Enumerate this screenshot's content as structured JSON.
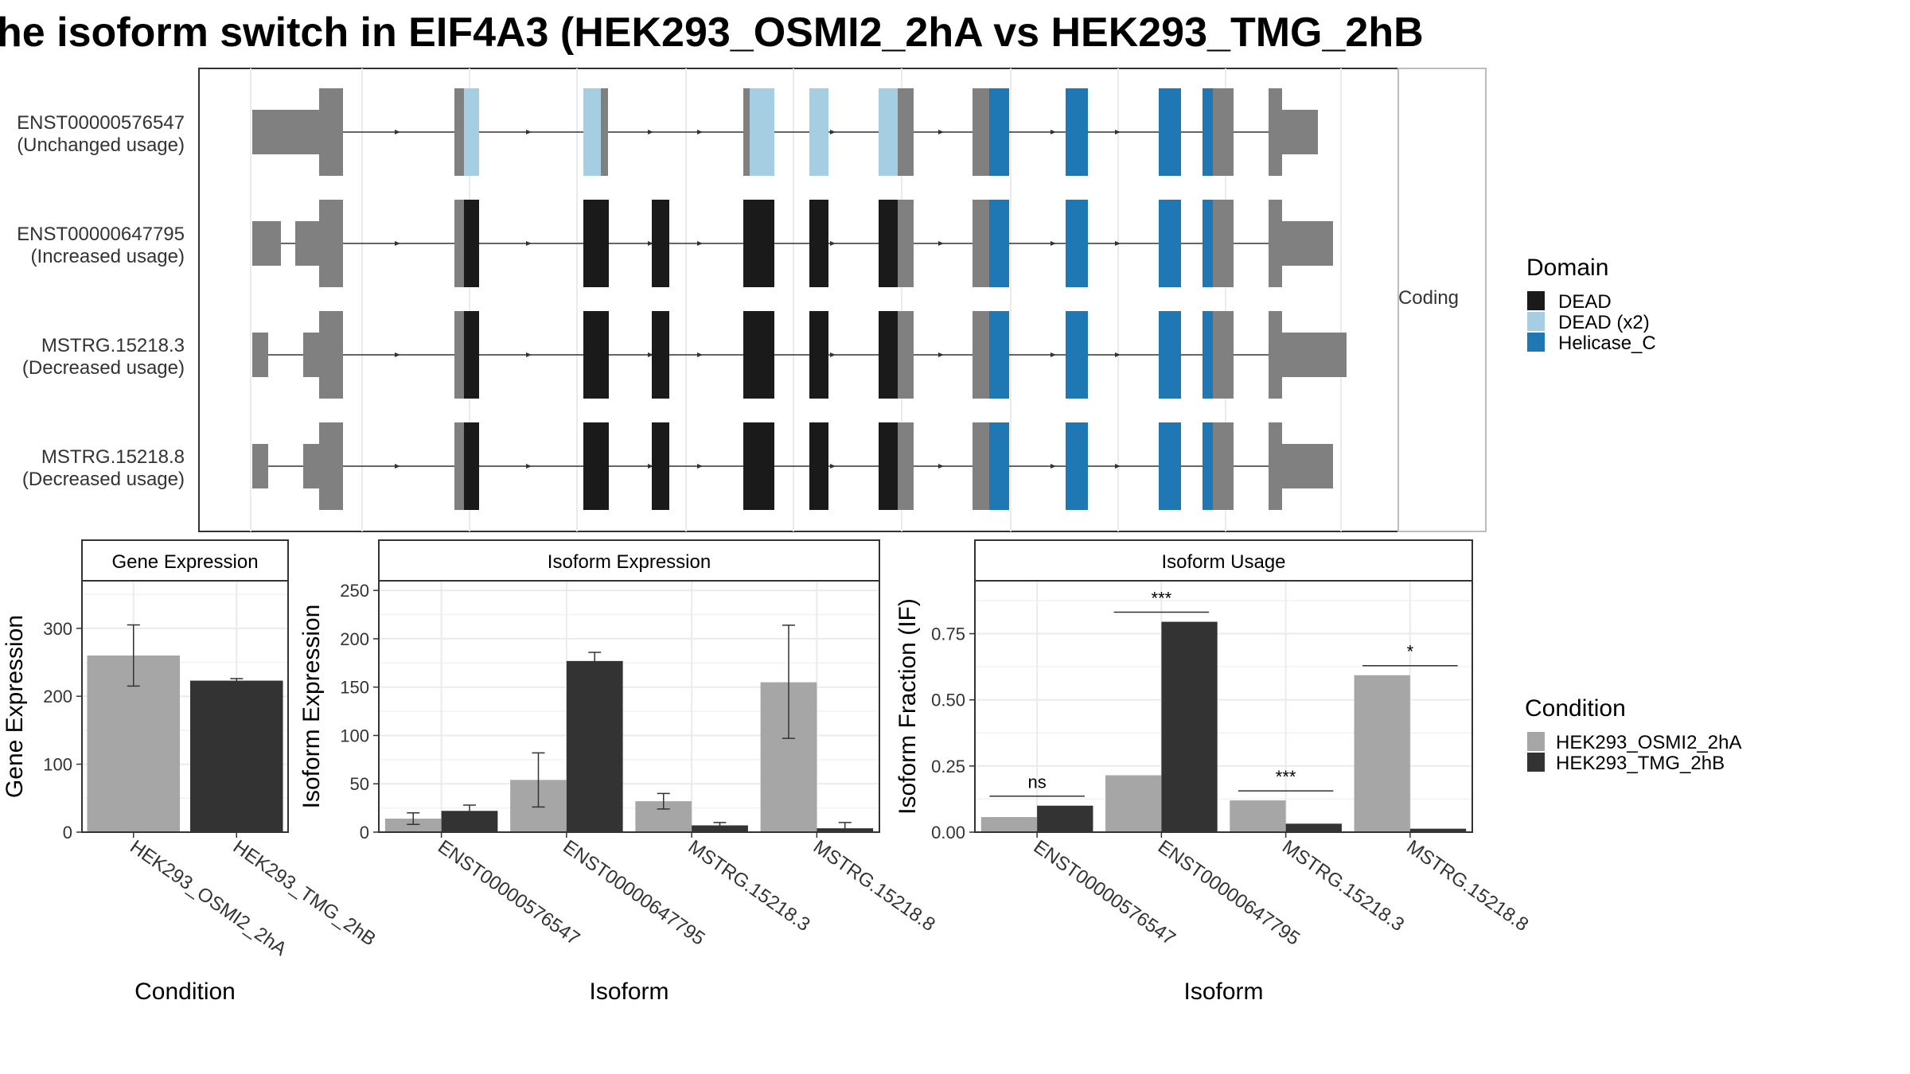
{
  "figure_title": "he isoform switch in EIF4A3 (HEK293_OSMI2_2hA vs HEK293_TMG_2hB",
  "colors": {
    "utr": "#808080",
    "dead": "#1a1a1a",
    "dead_x2": "#a6cee3",
    "helicase_c": "#1f78b4",
    "cond1": "#a6a6a6",
    "cond2": "#333333",
    "grid": "#ebebeb",
    "panel_border": "#333333"
  },
  "structure": {
    "facet_label": "Coding",
    "legend": {
      "title": "Domain",
      "items": [
        {
          "label": "DEAD",
          "color": "#1a1a1a"
        },
        {
          "label": "DEAD (x2)",
          "color": "#a6cee3"
        },
        {
          "label": "Helicase_C",
          "color": "#1f78b4"
        }
      ]
    },
    "transcripts": [
      {
        "id": "ENST00000576547",
        "usage": "(Unchanged usage)",
        "scheme": "x2"
      },
      {
        "id": "ENST00000647795",
        "usage": "(Increased usage)",
        "scheme": "dead"
      },
      {
        "id": "MSTRG.15218.3",
        "usage": "(Decreased usage)",
        "scheme": "dead"
      },
      {
        "id": "MSTRG.15218.8",
        "usage": "(Decreased usage)",
        "scheme": "dead"
      }
    ]
  },
  "condition_legend": {
    "title": "Condition",
    "items": [
      {
        "label": "HEK293_OSMI2_2hA",
        "color": "#a6a6a6"
      },
      {
        "label": "HEK293_TMG_2hB",
        "color": "#333333"
      }
    ]
  },
  "chart_data": [
    {
      "type": "bar",
      "title": "Gene Expression",
      "xlabel": "Condition",
      "ylabel": "Gene Expression",
      "ylim": [
        0,
        370
      ],
      "yticks": [
        0,
        100,
        200,
        300
      ],
      "categories": [
        "HEK293_OSMI2_2hA",
        "HEK293_TMG_2hB"
      ],
      "values": [
        260,
        223
      ],
      "error_low": [
        215,
        220
      ],
      "error_high": [
        305,
        226
      ]
    },
    {
      "type": "bar",
      "title": "Isoform Expression",
      "xlabel": "Isoform",
      "ylabel": "Isoform Expression",
      "ylim": [
        0,
        260
      ],
      "yticks": [
        0,
        50,
        100,
        150,
        200,
        250
      ],
      "categories": [
        "ENST00000576547",
        "ENST00000647795",
        "MSTRG.15218.3",
        "MSTRG.15218.8"
      ],
      "series": [
        {
          "name": "HEK293_OSMI2_2hA",
          "values": [
            14,
            54,
            32,
            155
          ],
          "error_low": [
            8,
            26,
            24,
            97
          ],
          "error_high": [
            20,
            82,
            40,
            214
          ]
        },
        {
          "name": "HEK293_TMG_2hB",
          "values": [
            22,
            177,
            7,
            4
          ],
          "error_low": [
            17,
            168,
            4,
            0
          ],
          "error_high": [
            28,
            186,
            10,
            10
          ]
        }
      ]
    },
    {
      "type": "bar",
      "title": "Isoform Usage",
      "xlabel": "Isoform",
      "ylabel": "Isoform Fraction (IF)",
      "ylim": [
        0,
        0.95
      ],
      "yticks": [
        0,
        0.25,
        0.5,
        0.75
      ],
      "ytick_labels": [
        "0.00",
        "0.25",
        "0.50",
        "0.75"
      ],
      "categories": [
        "ENST00000576547",
        "ENST00000647795",
        "MSTRG.15218.3",
        "MSTRG.15218.8"
      ],
      "series": [
        {
          "name": "HEK293_OSMI2_2hA",
          "values": [
            0.057,
            0.215,
            0.12,
            0.593
          ]
        },
        {
          "name": "HEK293_TMG_2hB",
          "values": [
            0.1,
            0.795,
            0.032,
            0.013
          ]
        }
      ],
      "significance": [
        "ns",
        "***",
        "***",
        "*"
      ]
    }
  ]
}
